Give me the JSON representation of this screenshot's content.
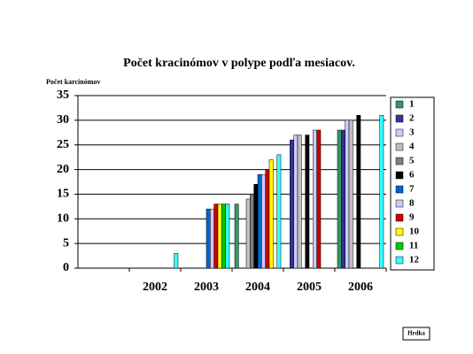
{
  "chart_data": {
    "type": "bar",
    "title": "Počet kracinómov v polype podľa mesiacov.",
    "y_label": "Počet karcinómov",
    "note": "Hrdka",
    "categories": [
      null,
      "2002",
      "2003",
      "2004",
      "2005",
      "2006"
    ],
    "ylim": [
      0,
      35
    ],
    "yticks": [
      0,
      5,
      10,
      15,
      20,
      25,
      30,
      35
    ],
    "grid": true,
    "series": [
      {
        "name": "1",
        "color": "#339966",
        "values": [
          null,
          null,
          null,
          13,
          null,
          28
        ]
      },
      {
        "name": "2",
        "color": "#333399",
        "values": [
          null,
          null,
          null,
          null,
          26,
          28
        ]
      },
      {
        "name": "3",
        "color": "#ccccff",
        "values": [
          null,
          null,
          null,
          null,
          27,
          30
        ]
      },
      {
        "name": "4",
        "color": "#c0c0c0",
        "values": [
          null,
          null,
          null,
          14,
          27,
          30
        ]
      },
      {
        "name": "5",
        "color": "#808080",
        "values": [
          null,
          null,
          null,
          15,
          null,
          null
        ]
      },
      {
        "name": "6",
        "color": "#000000",
        "values": [
          null,
          null,
          null,
          17,
          27,
          31
        ]
      },
      {
        "name": "7",
        "color": "#0066cc",
        "values": [
          null,
          null,
          12,
          19,
          null,
          null
        ]
      },
      {
        "name": "8",
        "color": "#ccccff",
        "values": [
          null,
          null,
          12,
          19,
          28,
          null
        ]
      },
      {
        "name": "9",
        "color": "#cc0000",
        "values": [
          null,
          null,
          13,
          20,
          28,
          null
        ]
      },
      {
        "name": "10",
        "color": "#ffff00",
        "values": [
          null,
          null,
          13,
          22,
          null,
          null
        ]
      },
      {
        "name": "11",
        "color": "#00cc00",
        "values": [
          null,
          null,
          13,
          null,
          null,
          null
        ]
      },
      {
        "name": "12",
        "color": "#33ffff",
        "values": [
          null,
          3,
          13,
          23,
          null,
          31
        ]
      }
    ]
  }
}
